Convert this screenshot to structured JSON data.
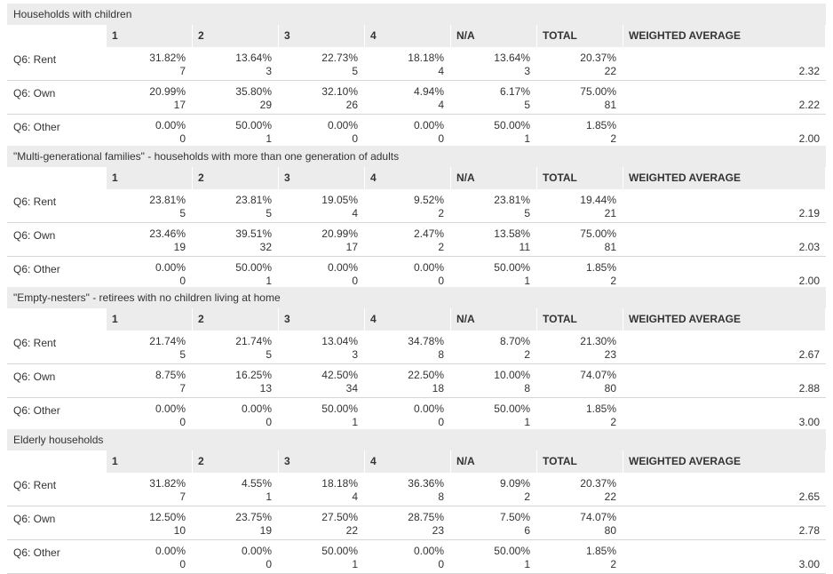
{
  "columns": [
    "1",
    "2",
    "3",
    "4",
    "N/A",
    "TOTAL",
    "WEIGHTED AVERAGE"
  ],
  "sections": [
    {
      "title": "Households with children",
      "rows": [
        {
          "label": "Q6: Rent",
          "cells": [
            [
              "31.82%",
              "7"
            ],
            [
              "13.64%",
              "3"
            ],
            [
              "22.73%",
              "5"
            ],
            [
              "18.18%",
              "4"
            ],
            [
              "13.64%",
              "3"
            ],
            [
              "20.37%",
              "22"
            ]
          ],
          "wavg": "2.32"
        },
        {
          "label": "Q6: Own",
          "cells": [
            [
              "20.99%",
              "17"
            ],
            [
              "35.80%",
              "29"
            ],
            [
              "32.10%",
              "26"
            ],
            [
              "4.94%",
              "4"
            ],
            [
              "6.17%",
              "5"
            ],
            [
              "75.00%",
              "81"
            ]
          ],
          "wavg": "2.22"
        },
        {
          "label": "Q6: Other",
          "cells": [
            [
              "0.00%",
              "0"
            ],
            [
              "50.00%",
              "1"
            ],
            [
              "0.00%",
              "0"
            ],
            [
              "0.00%",
              "0"
            ],
            [
              "50.00%",
              "1"
            ],
            [
              "1.85%",
              "2"
            ]
          ],
          "wavg": "2.00"
        }
      ]
    },
    {
      "title": "\"Multi-generational families\" - households with more than one generation of adults",
      "rows": [
        {
          "label": "Q6: Rent",
          "cells": [
            [
              "23.81%",
              "5"
            ],
            [
              "23.81%",
              "5"
            ],
            [
              "19.05%",
              "4"
            ],
            [
              "9.52%",
              "2"
            ],
            [
              "23.81%",
              "5"
            ],
            [
              "19.44%",
              "21"
            ]
          ],
          "wavg": "2.19"
        },
        {
          "label": "Q6: Own",
          "cells": [
            [
              "23.46%",
              "19"
            ],
            [
              "39.51%",
              "32"
            ],
            [
              "20.99%",
              "17"
            ],
            [
              "2.47%",
              "2"
            ],
            [
              "13.58%",
              "11"
            ],
            [
              "75.00%",
              "81"
            ]
          ],
          "wavg": "2.03"
        },
        {
          "label": "Q6: Other",
          "cells": [
            [
              "0.00%",
              "0"
            ],
            [
              "50.00%",
              "1"
            ],
            [
              "0.00%",
              "0"
            ],
            [
              "0.00%",
              "0"
            ],
            [
              "50.00%",
              "1"
            ],
            [
              "1.85%",
              "2"
            ]
          ],
          "wavg": "2.00"
        }
      ]
    },
    {
      "title": "\"Empty-nesters\" - retirees with no children living at home",
      "rows": [
        {
          "label": "Q6: Rent",
          "cells": [
            [
              "21.74%",
              "5"
            ],
            [
              "21.74%",
              "5"
            ],
            [
              "13.04%",
              "3"
            ],
            [
              "34.78%",
              "8"
            ],
            [
              "8.70%",
              "2"
            ],
            [
              "21.30%",
              "23"
            ]
          ],
          "wavg": "2.67"
        },
        {
          "label": "Q6: Own",
          "cells": [
            [
              "8.75%",
              "7"
            ],
            [
              "16.25%",
              "13"
            ],
            [
              "42.50%",
              "34"
            ],
            [
              "22.50%",
              "18"
            ],
            [
              "10.00%",
              "8"
            ],
            [
              "74.07%",
              "80"
            ]
          ],
          "wavg": "2.88"
        },
        {
          "label": "Q6: Other",
          "cells": [
            [
              "0.00%",
              "0"
            ],
            [
              "0.00%",
              "0"
            ],
            [
              "50.00%",
              "1"
            ],
            [
              "0.00%",
              "0"
            ],
            [
              "50.00%",
              "1"
            ],
            [
              "1.85%",
              "2"
            ]
          ],
          "wavg": "3.00"
        }
      ]
    },
    {
      "title": "Elderly households",
      "rows": [
        {
          "label": "Q6: Rent",
          "cells": [
            [
              "31.82%",
              "7"
            ],
            [
              "4.55%",
              "1"
            ],
            [
              "18.18%",
              "4"
            ],
            [
              "36.36%",
              "8"
            ],
            [
              "9.09%",
              "2"
            ],
            [
              "20.37%",
              "22"
            ]
          ],
          "wavg": "2.65"
        },
        {
          "label": "Q6: Own",
          "cells": [
            [
              "12.50%",
              "10"
            ],
            [
              "23.75%",
              "19"
            ],
            [
              "27.50%",
              "22"
            ],
            [
              "28.75%",
              "23"
            ],
            [
              "7.50%",
              "6"
            ],
            [
              "74.07%",
              "80"
            ]
          ],
          "wavg": "2.78"
        },
        {
          "label": "Q6: Other",
          "cells": [
            [
              "0.00%",
              "0"
            ],
            [
              "0.00%",
              "0"
            ],
            [
              "50.00%",
              "1"
            ],
            [
              "0.00%",
              "0"
            ],
            [
              "50.00%",
              "1"
            ],
            [
              "1.85%",
              "2"
            ]
          ],
          "wavg": "3.00"
        }
      ]
    }
  ]
}
